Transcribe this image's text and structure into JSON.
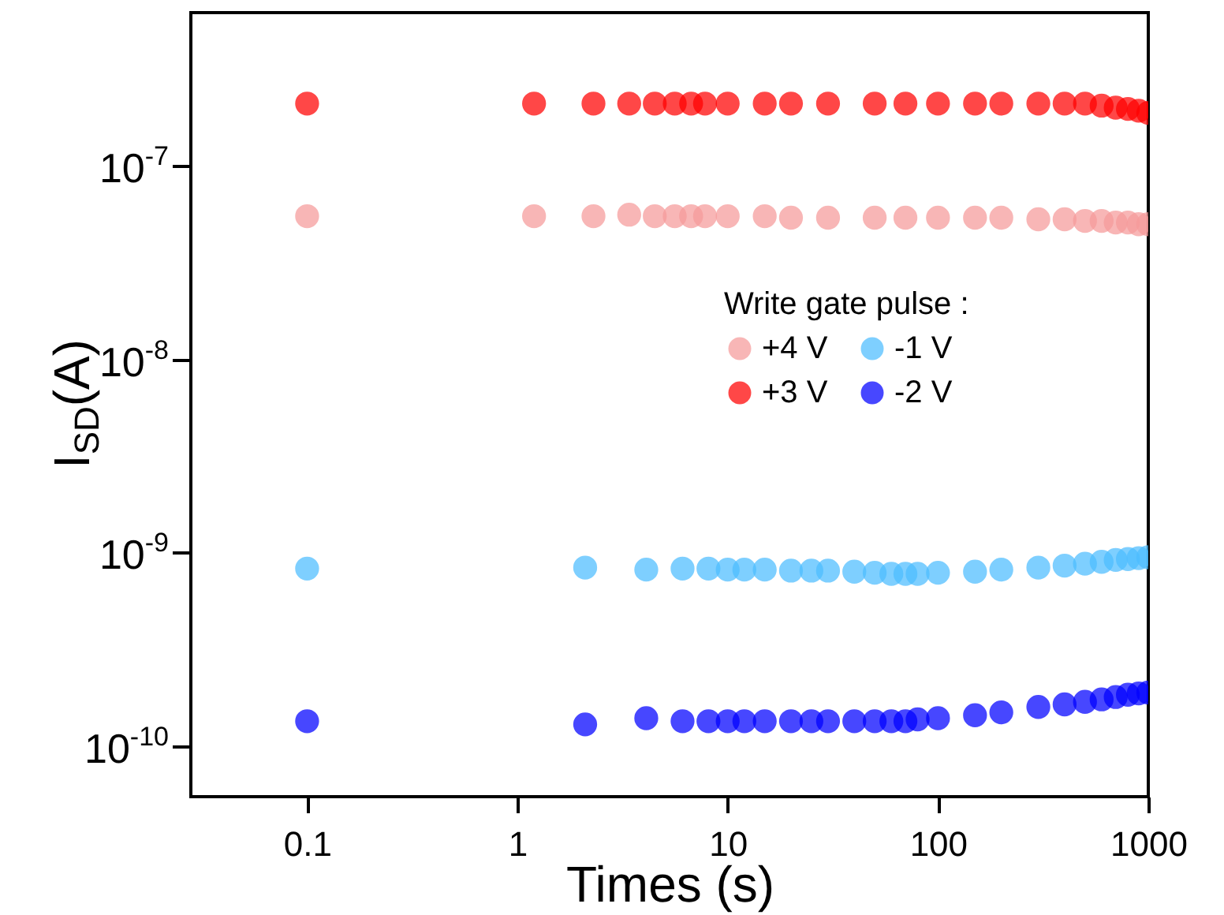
{
  "chart_data": {
    "type": "scatter",
    "xlabel": "Times (s)",
    "ylabel": "I$_{SD}$(A)",
    "legend_title": "Write gate pulse :",
    "log": "xy",
    "legend": "right",
    "grid": false,
    "marker": "circle",
    "xlim": [
      0.028,
      1000
    ],
    "xticks": [
      0.1,
      1,
      10,
      100,
      1000
    ],
    "ylim": [
      5.5e-11,
      6.2e-07
    ],
    "yticks": [
      {
        "value": 1e-07,
        "label": "10$^{-7}$"
      },
      {
        "value": 1e-08,
        "label": "10$^{-8}$"
      },
      {
        "value": 1e-09,
        "label": "10$^{-9}$"
      },
      {
        "value": 1e-10,
        "label": "10$^{-10}$"
      }
    ],
    "series": [
      {
        "name": "+4 V",
        "color": "#f59a9a",
        "x": [
          0.1,
          1.2,
          2.3,
          3.4,
          4.5,
          5.6,
          6.7,
          7.8,
          10,
          15,
          20,
          30,
          50,
          70,
          100,
          150,
          200,
          300,
          400,
          500,
          600,
          700,
          800,
          900,
          1000
        ],
        "values": [
          5.5e-08,
          5.5e-08,
          5.5e-08,
          5.6e-08,
          5.5e-08,
          5.5e-08,
          5.5e-08,
          5.5e-08,
          5.5e-08,
          5.5e-08,
          5.4e-08,
          5.4e-08,
          5.4e-08,
          5.4e-08,
          5.4e-08,
          5.4e-08,
          5.4e-08,
          5.3e-08,
          5.3e-08,
          5.2e-08,
          5.2e-08,
          5.1e-08,
          5.1e-08,
          5e-08,
          5e-08
        ]
      },
      {
        "name": "+3 V",
        "color": "#ff0000",
        "x": [
          0.1,
          1.2,
          2.3,
          3.4,
          4.5,
          5.6,
          6.7,
          7.8,
          10,
          15,
          20,
          30,
          50,
          70,
          100,
          150,
          200,
          300,
          400,
          500,
          600,
          700,
          800,
          900,
          1000
        ],
        "values": [
          2.1e-07,
          2.1e-07,
          2.1e-07,
          2.1e-07,
          2.1e-07,
          2.1e-07,
          2.1e-07,
          2.1e-07,
          2.1e-07,
          2.1e-07,
          2.1e-07,
          2.1e-07,
          2.1e-07,
          2.1e-07,
          2.1e-07,
          2.1e-07,
          2.1e-07,
          2.1e-07,
          2.1e-07,
          2.1e-07,
          2.05e-07,
          2e-07,
          1.97e-07,
          1.93e-07,
          1.88e-07
        ]
      },
      {
        "name": "-1 V",
        "color": "#4cbcff",
        "x": [
          0.1,
          2.1,
          4.1,
          6.1,
          8.1,
          10,
          12,
          15,
          20,
          25,
          30,
          40,
          50,
          60,
          70,
          80,
          100,
          150,
          200,
          300,
          400,
          500,
          600,
          700,
          800,
          900,
          1000
        ],
        "values": [
          8.3e-10,
          8.4e-10,
          8.2e-10,
          8.3e-10,
          8.3e-10,
          8.2e-10,
          8.2e-10,
          8.2e-10,
          8.1e-10,
          8.1e-10,
          8.1e-10,
          8e-10,
          7.9e-10,
          7.8e-10,
          7.8e-10,
          7.8e-10,
          7.9e-10,
          8e-10,
          8.2e-10,
          8.4e-10,
          8.6e-10,
          8.8e-10,
          9e-10,
          9.2e-10,
          9.3e-10,
          9.4e-10,
          9.5e-10
        ]
      },
      {
        "name": "-2 V",
        "color": "#0000ff",
        "x": [
          0.1,
          2.1,
          4.1,
          6.1,
          8.1,
          10,
          12,
          15,
          20,
          25,
          30,
          40,
          50,
          60,
          70,
          80,
          100,
          150,
          200,
          300,
          400,
          500,
          600,
          700,
          800,
          900,
          1000
        ],
        "values": [
          1.35e-10,
          1.3e-10,
          1.4e-10,
          1.35e-10,
          1.35e-10,
          1.35e-10,
          1.35e-10,
          1.35e-10,
          1.35e-10,
          1.35e-10,
          1.35e-10,
          1.35e-10,
          1.35e-10,
          1.35e-10,
          1.35e-10,
          1.38e-10,
          1.4e-10,
          1.45e-10,
          1.5e-10,
          1.6e-10,
          1.65e-10,
          1.7e-10,
          1.75e-10,
          1.8e-10,
          1.85e-10,
          1.88e-10,
          1.9e-10
        ]
      }
    ]
  }
}
